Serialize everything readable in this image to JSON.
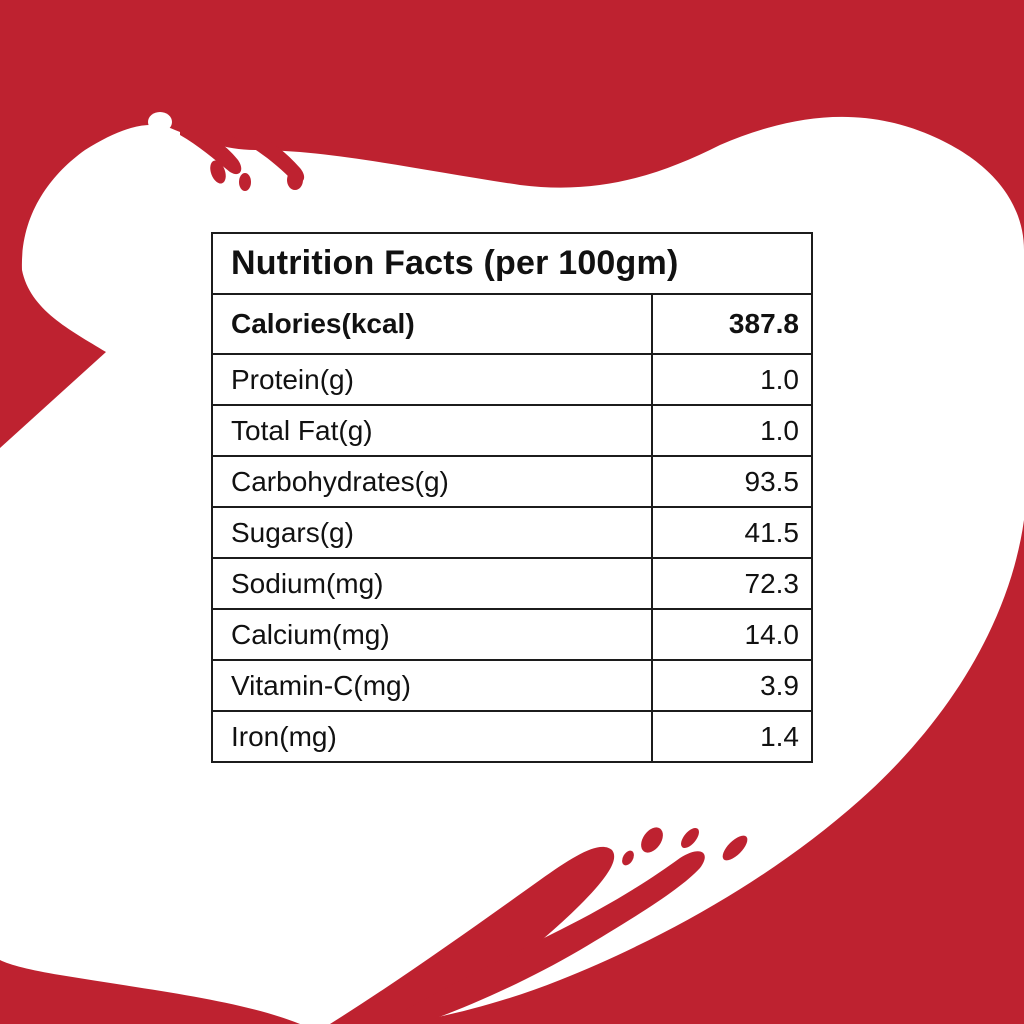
{
  "colors": {
    "background_red": "#BE2230",
    "splash_white": "#FFFFFF",
    "text": "#111111"
  },
  "table": {
    "title": "Nutrition Facts (per 100gm)",
    "rows": [
      {
        "label": "Calories(kcal)",
        "value": "387.8",
        "bold": true
      },
      {
        "label": "Protein(g)",
        "value": "1.0"
      },
      {
        "label": "Total Fat(g)",
        "value": "1.0"
      },
      {
        "label": "Carbohydrates(g)",
        "value": "93.5"
      },
      {
        "label": "Sugars(g)",
        "value": "41.5"
      },
      {
        "label": "Sodium(mg)",
        "value": "72.3"
      },
      {
        "label": "Calcium(mg)",
        "value": "14.0"
      },
      {
        "label": "Vitamin-C(mg)",
        "value": "3.9"
      },
      {
        "label": "Iron(mg)",
        "value": "1.4"
      }
    ]
  }
}
